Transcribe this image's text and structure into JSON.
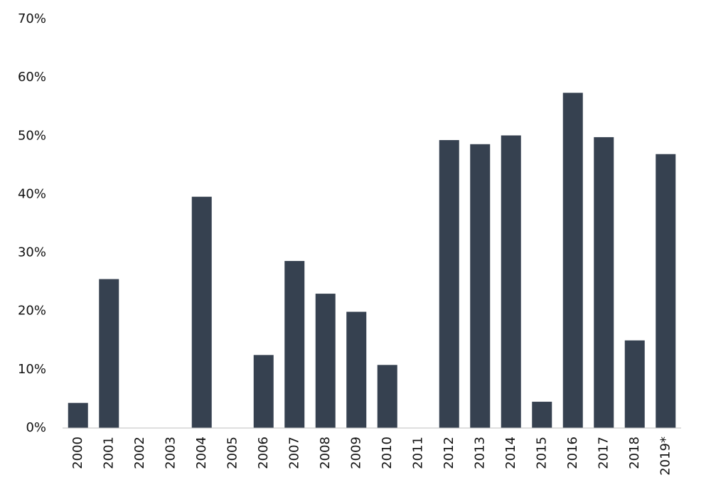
{
  "chart_data": {
    "type": "bar",
    "categories": [
      "2000",
      "2001",
      "2002",
      "2003",
      "2004",
      "2005",
      "2006",
      "2007",
      "2008",
      "2009",
      "2010",
      "2011",
      "2012",
      "2013",
      "2014",
      "2015",
      "2016",
      "2017",
      "2018",
      "2019*"
    ],
    "values": [
      4.3,
      25.5,
      0,
      0,
      39.6,
      0,
      12.5,
      28.6,
      23.0,
      19.9,
      10.8,
      0,
      49.3,
      48.6,
      50.1,
      4.5,
      57.4,
      49.8,
      15.0,
      46.9
    ],
    "color": "#364150",
    "ylim": [
      0,
      70
    ],
    "yticks": [
      {
        "value": 0,
        "label": "0%"
      },
      {
        "value": 10,
        "label": "10%"
      },
      {
        "value": 20,
        "label": "20%"
      },
      {
        "value": 30,
        "label": "30%"
      },
      {
        "value": 40,
        "label": "40%"
      },
      {
        "value": 50,
        "label": "50%"
      },
      {
        "value": 60,
        "label": "60%"
      },
      {
        "value": 70,
        "label": "70%"
      }
    ],
    "grid": false
  }
}
